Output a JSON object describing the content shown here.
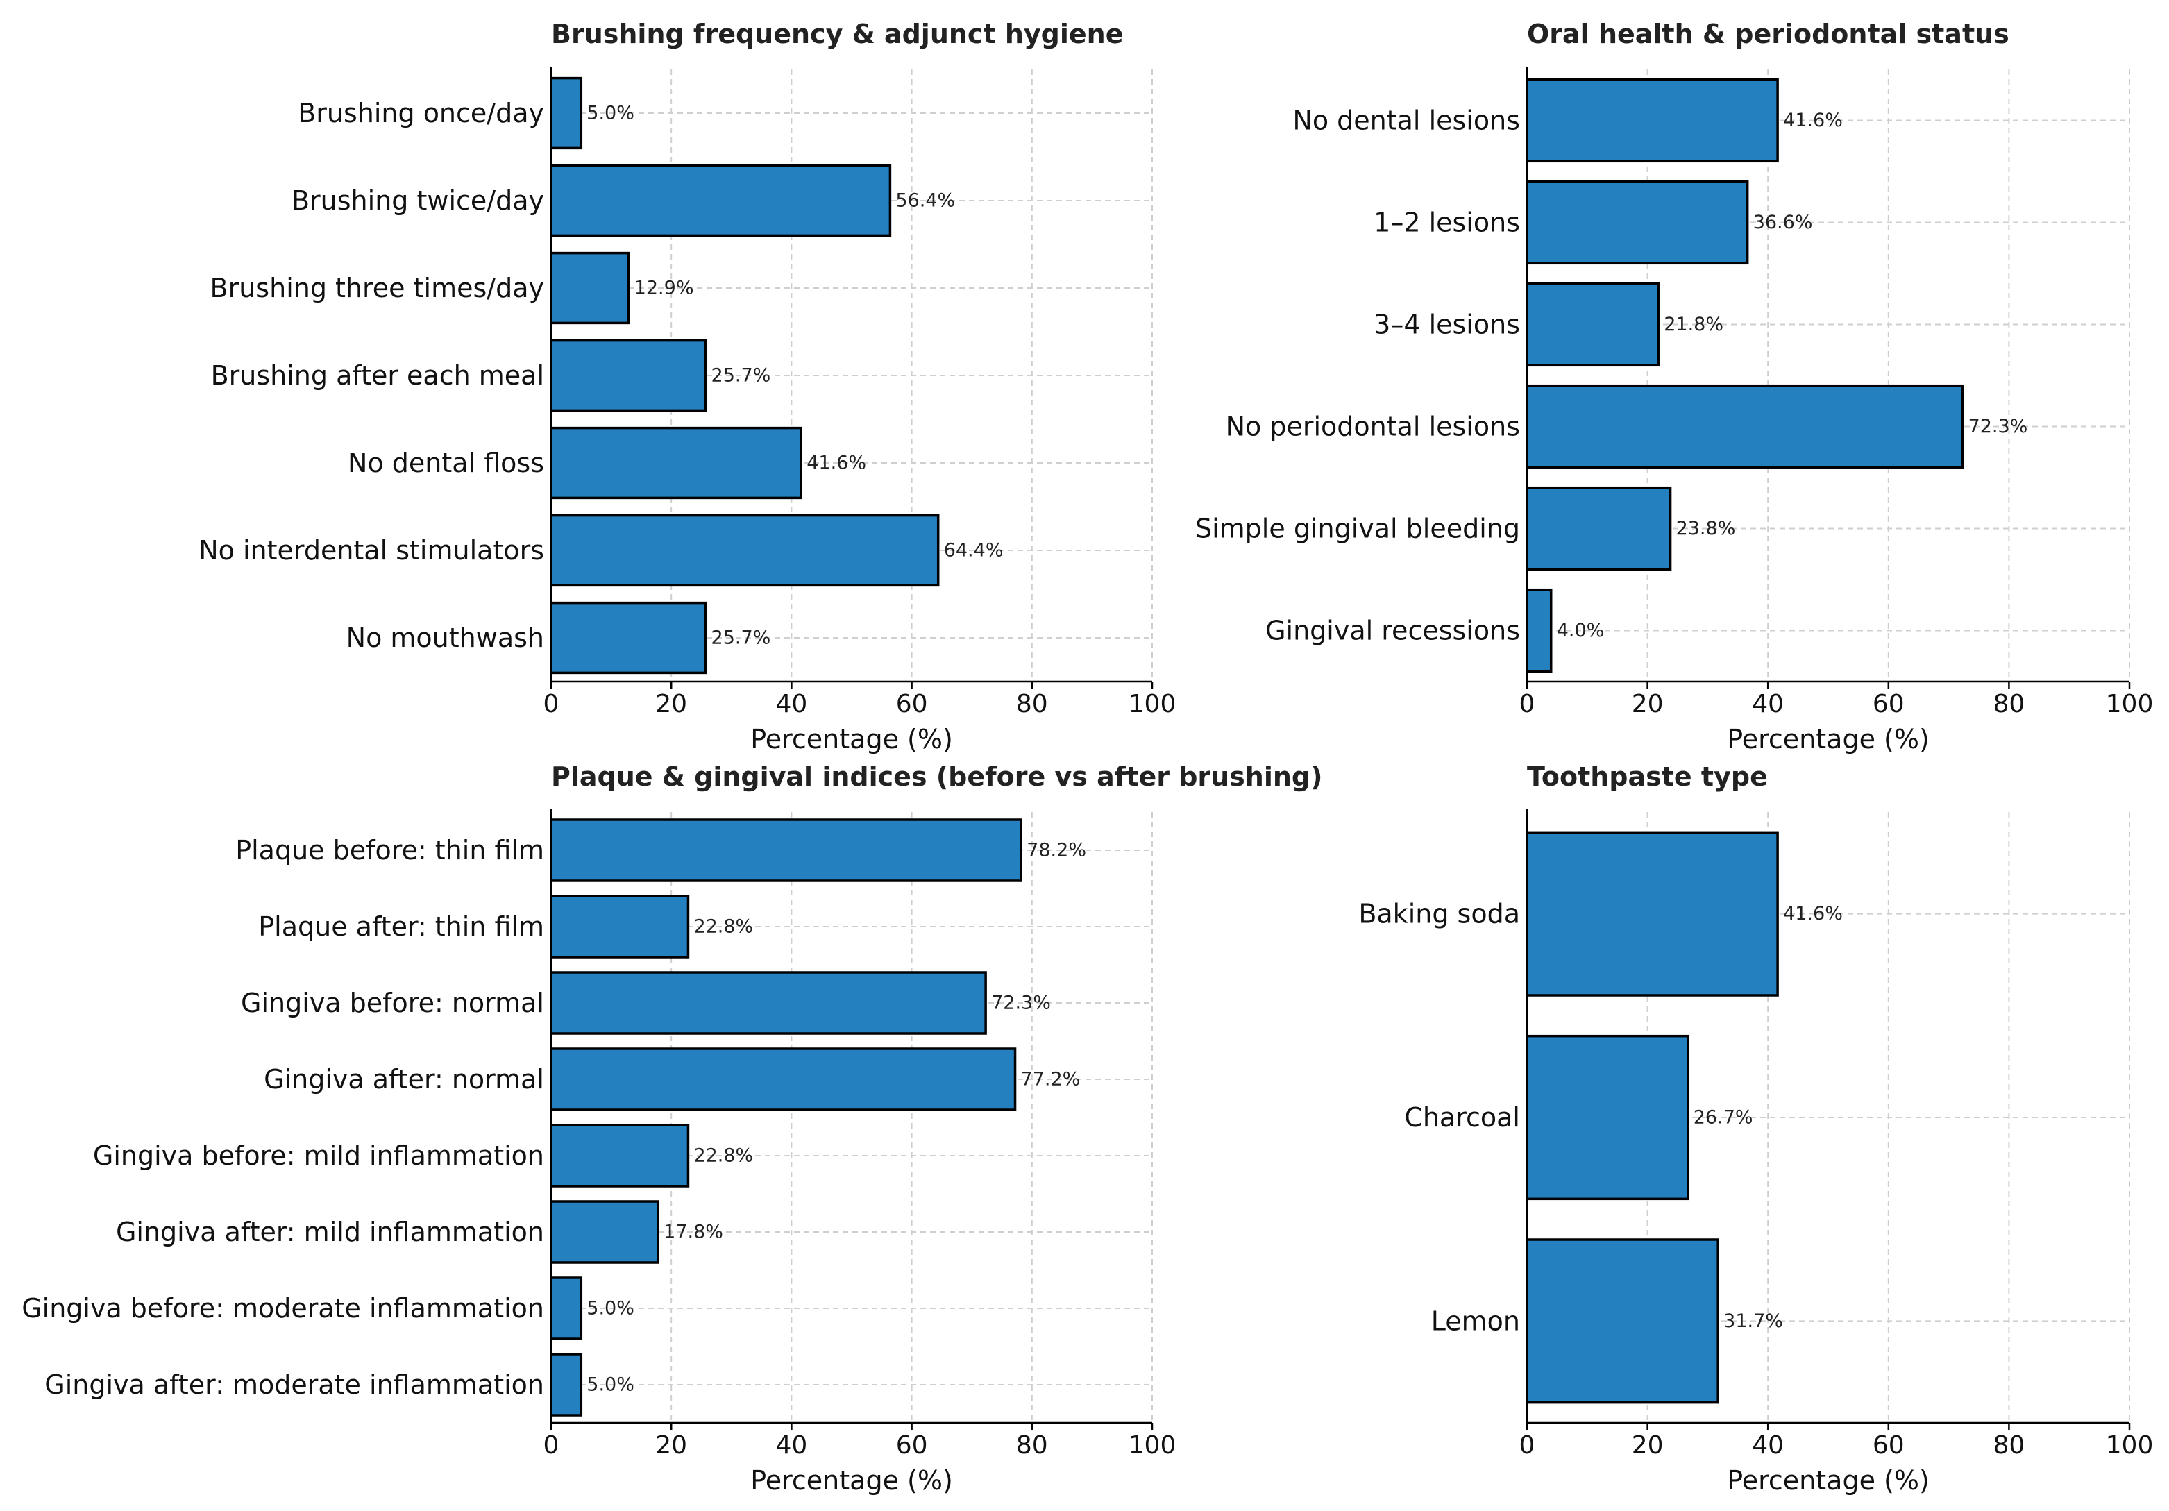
{
  "colors": {
    "bar": "#2580c0",
    "bar_edge": "#000000",
    "grid": "#cfcfcf"
  },
  "chart_data": [
    {
      "type": "bar",
      "orientation": "horizontal",
      "title": "Brushing frequency & adjunct hygiene",
      "xlabel": "Percentage (%)",
      "ylabel": "",
      "xlim": [
        0,
        100
      ],
      "xticks": [
        0,
        20,
        40,
        60,
        80,
        100
      ],
      "grid": true,
      "categories": [
        "Brushing once/day",
        "Brushing twice/day",
        "Brushing three times/day",
        "Brushing after each meal",
        "No dental floss",
        "No interdental stimulators",
        "No mouthwash"
      ],
      "values": [
        5.0,
        56.4,
        12.9,
        25.7,
        41.6,
        64.4,
        25.7
      ],
      "value_labels": [
        "5.0%",
        "56.4%",
        "12.9%",
        "25.7%",
        "41.6%",
        "64.4%",
        "25.7%"
      ]
    },
    {
      "type": "bar",
      "orientation": "horizontal",
      "title": "Oral health & periodontal status",
      "xlabel": "Percentage (%)",
      "ylabel": "",
      "xlim": [
        0,
        100
      ],
      "xticks": [
        0,
        20,
        40,
        60,
        80,
        100
      ],
      "grid": true,
      "categories": [
        "No dental lesions",
        "1–2 lesions",
        "3–4 lesions",
        "No periodontal lesions",
        "Simple gingival bleeding",
        "Gingival recessions"
      ],
      "values": [
        41.6,
        36.6,
        21.8,
        72.3,
        23.8,
        4.0
      ],
      "value_labels": [
        "41.6%",
        "36.6%",
        "21.8%",
        "72.3%",
        "23.8%",
        "4.0%"
      ]
    },
    {
      "type": "bar",
      "orientation": "horizontal",
      "title": "Plaque & gingival indices (before vs after brushing)",
      "xlabel": "Percentage (%)",
      "ylabel": "",
      "xlim": [
        0,
        100
      ],
      "xticks": [
        0,
        20,
        40,
        60,
        80,
        100
      ],
      "grid": true,
      "categories": [
        "Plaque before: thin film",
        "Plaque after: thin film",
        "Gingiva before: normal",
        "Gingiva after: normal",
        "Gingiva before: mild inflammation",
        "Gingiva after: mild inflammation",
        "Gingiva before: moderate inflammation",
        "Gingiva after: moderate inflammation"
      ],
      "values": [
        78.2,
        22.8,
        72.3,
        77.2,
        22.8,
        17.8,
        5.0,
        5.0
      ],
      "value_labels": [
        "78.2%",
        "22.8%",
        "72.3%",
        "77.2%",
        "22.8%",
        "17.8%",
        "5.0%",
        "5.0%"
      ]
    },
    {
      "type": "bar",
      "orientation": "horizontal",
      "title": "Toothpaste type",
      "xlabel": "Percentage (%)",
      "ylabel": "",
      "xlim": [
        0,
        100
      ],
      "xticks": [
        0,
        20,
        40,
        60,
        80,
        100
      ],
      "grid": true,
      "categories": [
        "Baking soda",
        "Charcoal",
        "Lemon"
      ],
      "values": [
        41.6,
        26.7,
        31.7
      ],
      "value_labels": [
        "41.6%",
        "26.7%",
        "31.7%"
      ]
    }
  ]
}
